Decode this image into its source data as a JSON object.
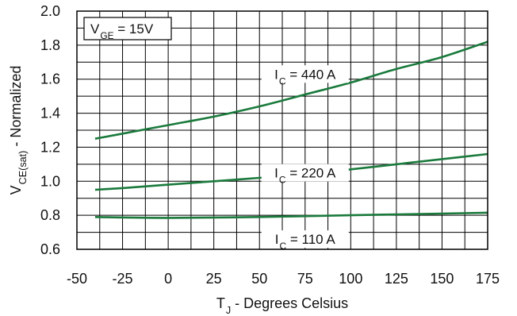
{
  "chart_data": {
    "type": "line",
    "title": "",
    "xlabel": {
      "main": "T",
      "sub": "J",
      "rest": " - Degrees Celsius"
    },
    "ylabel": {
      "main": "V",
      "sub": "CE(sat)",
      "rest": " - Normalized"
    },
    "xlim": [
      -50,
      175
    ],
    "ylim": [
      0.6,
      2.0
    ],
    "x_ticks": [
      "-50",
      "-25",
      "0",
      "25",
      "50",
      "75",
      "100",
      "125",
      "150",
      "175"
    ],
    "y_ticks": [
      "0.6",
      "0.8",
      "1.0",
      "1.2",
      "1.4",
      "1.6",
      "1.8",
      "2.0"
    ],
    "grid": true,
    "line_color": "#1a7a3c",
    "legend_box": {
      "main": "V",
      "sub": "GE",
      "rest": " = 15V"
    },
    "series": [
      {
        "label": {
          "main": "I",
          "sub": "C",
          "rest": " = 440 A"
        },
        "x": [
          -40,
          -25,
          0,
          25,
          50,
          75,
          100,
          125,
          150,
          175
        ],
        "y": [
          1.25,
          1.28,
          1.33,
          1.38,
          1.44,
          1.51,
          1.58,
          1.66,
          1.73,
          1.82
        ]
      },
      {
        "label": {
          "main": "I",
          "sub": "C",
          "rest": " = 220 A"
        },
        "x": [
          -40,
          -25,
          0,
          25,
          50,
          75,
          100,
          125,
          150,
          175
        ],
        "y": [
          0.95,
          0.96,
          0.98,
          1.0,
          1.02,
          1.04,
          1.07,
          1.1,
          1.13,
          1.16
        ]
      },
      {
        "label": {
          "main": "I",
          "sub": "C",
          "rest": " = 110 A"
        },
        "x": [
          -40,
          0,
          50,
          100,
          150,
          175
        ],
        "y": [
          0.79,
          0.785,
          0.79,
          0.8,
          0.81,
          0.815
        ]
      }
    ]
  }
}
